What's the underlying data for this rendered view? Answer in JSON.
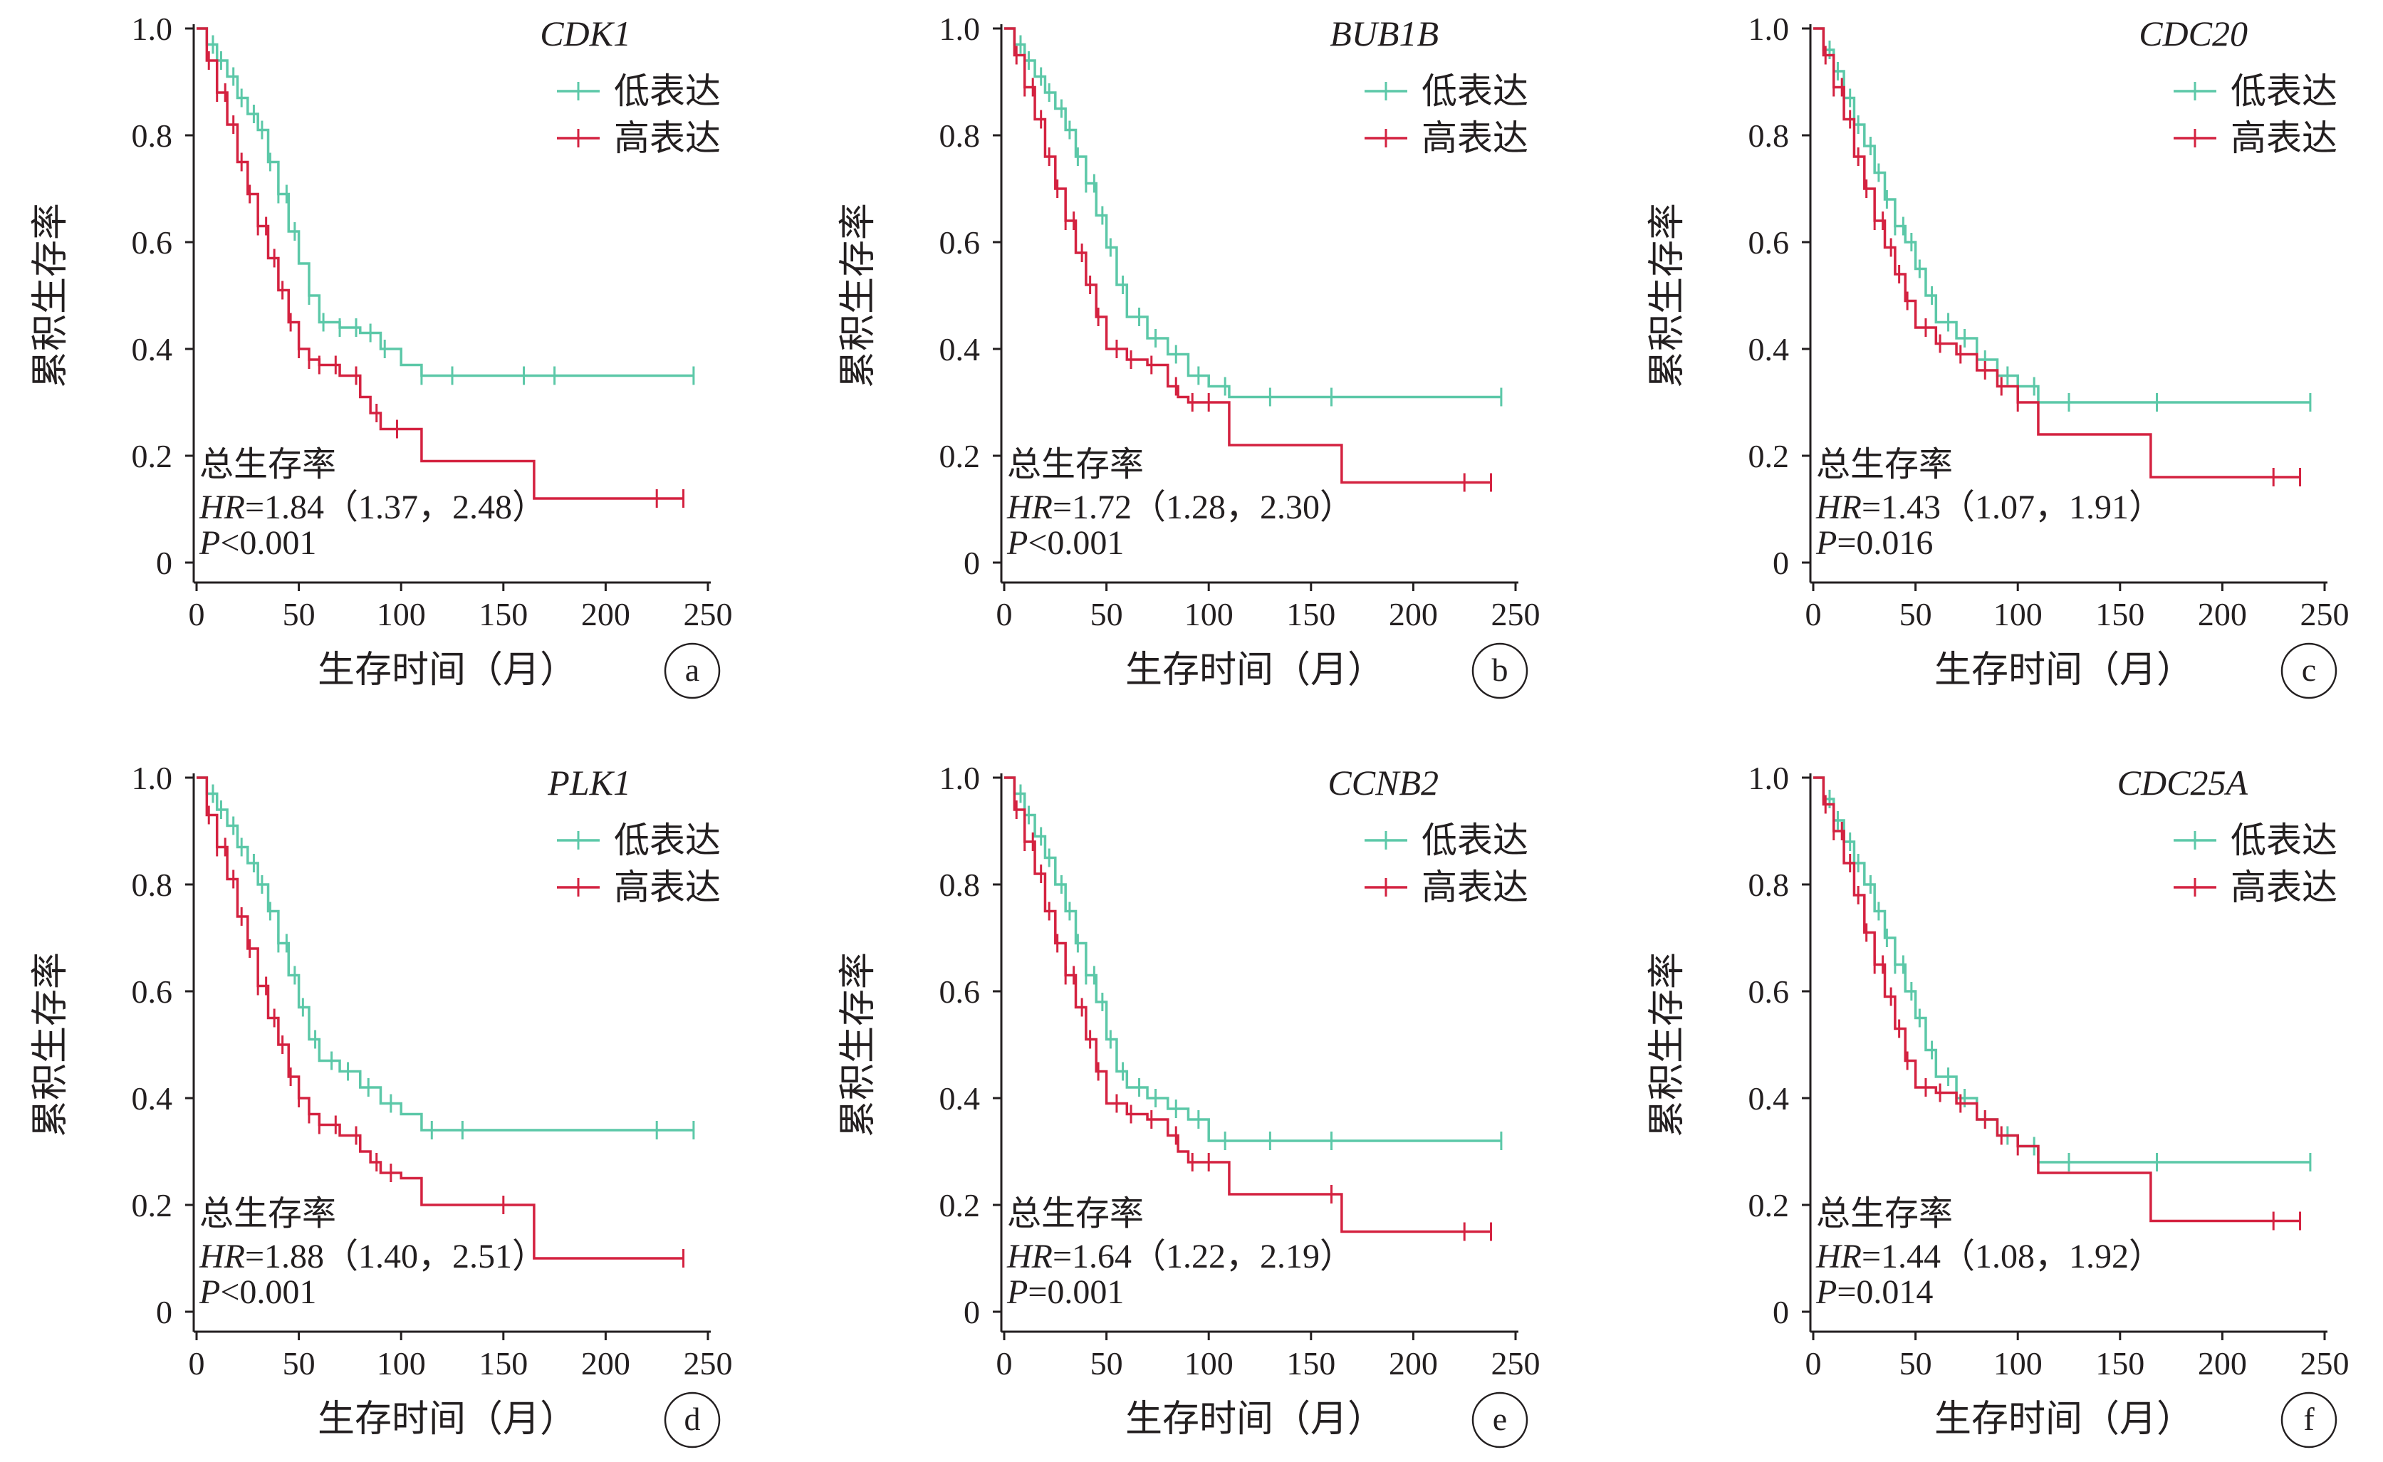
{
  "figure": {
    "y_axis_label": "累积生存率",
    "x_axis_label": "生存时间（月）",
    "legend_low": "低表达",
    "legend_high": "高表达",
    "stat_title": "总生存率",
    "colors": {
      "low": "#5cc8a8",
      "high": "#d42240",
      "axis": "#231f20"
    }
  },
  "chart_data": [
    {
      "type": "line",
      "panel": "a",
      "gene": "CDK1",
      "hr_label": "HR",
      "hr_text": "=1.84（1.37，2.48）",
      "p_label": "P",
      "p_text": "<0.001",
      "xlabel": "生存时间（月）",
      "ylabel": "累积生存率",
      "xlim": [
        0,
        250
      ],
      "ylim": [
        0,
        1.0
      ],
      "x_ticks": [
        "0",
        "50",
        "100",
        "150",
        "200",
        "250"
      ],
      "y_ticks": [
        "0",
        "0.2",
        "0.4",
        "0.6",
        "0.8",
        "1.0"
      ],
      "series": [
        {
          "name": "低表达",
          "key": "low",
          "x": [
            0,
            5,
            10,
            15,
            20,
            25,
            30,
            35,
            40,
            45,
            50,
            55,
            60,
            70,
            80,
            90,
            100,
            110,
            243
          ],
          "y": [
            1.0,
            0.97,
            0.94,
            0.91,
            0.87,
            0.84,
            0.81,
            0.75,
            0.69,
            0.62,
            0.56,
            0.5,
            0.45,
            0.44,
            0.43,
            0.4,
            0.37,
            0.35,
            0.35
          ],
          "censor_x": [
            8,
            12,
            18,
            22,
            28,
            32,
            36,
            40,
            44,
            48,
            55,
            62,
            70,
            78,
            85,
            92,
            110,
            125,
            160,
            175,
            243
          ]
        },
        {
          "name": "高表达",
          "key": "high",
          "x": [
            0,
            5,
            10,
            15,
            20,
            25,
            30,
            35,
            40,
            45,
            50,
            55,
            60,
            70,
            80,
            85,
            90,
            100,
            110,
            165,
            238
          ],
          "y": [
            1.0,
            0.94,
            0.88,
            0.82,
            0.75,
            0.69,
            0.63,
            0.57,
            0.51,
            0.45,
            0.4,
            0.38,
            0.37,
            0.35,
            0.31,
            0.28,
            0.25,
            0.25,
            0.19,
            0.12,
            0.12
          ],
          "censor_x": [
            6,
            10,
            14,
            18,
            22,
            26,
            30,
            34,
            38,
            42,
            46,
            50,
            55,
            60,
            68,
            78,
            88,
            98,
            225,
            238
          ]
        }
      ]
    },
    {
      "type": "line",
      "panel": "b",
      "gene": "BUB1B",
      "hr_label": "HR",
      "hr_text": "=1.72（1.28，2.30）",
      "p_label": "P",
      "p_text": "<0.001",
      "xlabel": "生存时间（月）",
      "ylabel": "累积生存率",
      "xlim": [
        0,
        250
      ],
      "ylim": [
        0,
        1.0
      ],
      "x_ticks": [
        "0",
        "50",
        "100",
        "150",
        "200",
        "250"
      ],
      "y_ticks": [
        "0",
        "0.2",
        "0.4",
        "0.6",
        "0.8",
        "1.0"
      ],
      "series": [
        {
          "name": "低表达",
          "key": "low",
          "x": [
            0,
            5,
            10,
            15,
            20,
            25,
            30,
            35,
            40,
            45,
            50,
            55,
            60,
            70,
            80,
            90,
            100,
            110,
            243
          ],
          "y": [
            1.0,
            0.97,
            0.94,
            0.91,
            0.88,
            0.85,
            0.81,
            0.76,
            0.71,
            0.65,
            0.59,
            0.52,
            0.46,
            0.42,
            0.39,
            0.35,
            0.33,
            0.31,
            0.31
          ],
          "censor_x": [
            8,
            12,
            18,
            22,
            28,
            32,
            36,
            40,
            44,
            48,
            52,
            58,
            66,
            74,
            84,
            95,
            108,
            130,
            160,
            243
          ]
        },
        {
          "name": "高表达",
          "key": "high",
          "x": [
            0,
            5,
            10,
            15,
            20,
            25,
            30,
            35,
            40,
            45,
            50,
            60,
            70,
            80,
            85,
            90,
            110,
            165,
            238
          ],
          "y": [
            1.0,
            0.95,
            0.89,
            0.83,
            0.76,
            0.7,
            0.64,
            0.58,
            0.52,
            0.46,
            0.4,
            0.38,
            0.37,
            0.33,
            0.31,
            0.3,
            0.22,
            0.15,
            0.15
          ],
          "censor_x": [
            6,
            10,
            14,
            18,
            22,
            26,
            30,
            34,
            38,
            42,
            46,
            55,
            62,
            72,
            84,
            92,
            100,
            225,
            238
          ]
        }
      ]
    },
    {
      "type": "line",
      "panel": "c",
      "gene": "CDC20",
      "hr_label": "HR",
      "hr_text": "=1.43（1.07，1.91）",
      "p_label": "P",
      "p_text": "=0.016",
      "xlabel": "生存时间（月）",
      "ylabel": "累积生存率",
      "xlim": [
        0,
        250
      ],
      "ylim": [
        0,
        1.0
      ],
      "x_ticks": [
        "0",
        "50",
        "100",
        "150",
        "200",
        "250"
      ],
      "y_ticks": [
        "0",
        "0.2",
        "0.4",
        "0.6",
        "0.8",
        "1.0"
      ],
      "series": [
        {
          "name": "低表达",
          "key": "low",
          "x": [
            0,
            5,
            10,
            15,
            20,
            25,
            30,
            35,
            40,
            45,
            50,
            55,
            60,
            70,
            80,
            90,
            100,
            110,
            243
          ],
          "y": [
            1.0,
            0.96,
            0.92,
            0.87,
            0.82,
            0.78,
            0.73,
            0.68,
            0.63,
            0.6,
            0.55,
            0.5,
            0.45,
            0.42,
            0.38,
            0.35,
            0.33,
            0.3,
            0.3
          ],
          "censor_x": [
            8,
            12,
            18,
            22,
            28,
            32,
            36,
            40,
            44,
            48,
            52,
            58,
            66,
            74,
            84,
            95,
            108,
            125,
            168,
            243
          ]
        },
        {
          "name": "高表达",
          "key": "high",
          "x": [
            0,
            5,
            10,
            15,
            20,
            25,
            30,
            35,
            40,
            45,
            50,
            60,
            70,
            80,
            90,
            100,
            110,
            165,
            238
          ],
          "y": [
            1.0,
            0.95,
            0.89,
            0.83,
            0.76,
            0.7,
            0.64,
            0.59,
            0.54,
            0.49,
            0.44,
            0.41,
            0.39,
            0.36,
            0.33,
            0.3,
            0.24,
            0.16,
            0.16
          ],
          "censor_x": [
            6,
            10,
            14,
            18,
            22,
            26,
            30,
            34,
            38,
            42,
            46,
            55,
            62,
            72,
            84,
            92,
            100,
            225,
            238
          ]
        }
      ]
    },
    {
      "type": "line",
      "panel": "d",
      "gene": "PLK1",
      "hr_label": "HR",
      "hr_text": "=1.88（1.40，2.51）",
      "p_label": "P",
      "p_text": "<0.001",
      "xlabel": "生存时间（月）",
      "ylabel": "累积生存率",
      "xlim": [
        0,
        250
      ],
      "ylim": [
        0,
        1.0
      ],
      "x_ticks": [
        "0",
        "50",
        "100",
        "150",
        "200",
        "250"
      ],
      "y_ticks": [
        "0",
        "0.2",
        "0.4",
        "0.6",
        "0.8",
        "1.0"
      ],
      "series": [
        {
          "name": "低表达",
          "key": "low",
          "x": [
            0,
            5,
            10,
            15,
            20,
            25,
            30,
            35,
            40,
            45,
            50,
            55,
            60,
            70,
            80,
            90,
            100,
            110,
            243
          ],
          "y": [
            1.0,
            0.97,
            0.94,
            0.91,
            0.87,
            0.84,
            0.8,
            0.75,
            0.69,
            0.63,
            0.57,
            0.51,
            0.47,
            0.45,
            0.42,
            0.39,
            0.37,
            0.34,
            0.34
          ],
          "censor_x": [
            8,
            12,
            18,
            22,
            28,
            32,
            36,
            40,
            44,
            48,
            52,
            58,
            66,
            74,
            84,
            95,
            115,
            130,
            225,
            243
          ]
        },
        {
          "name": "高表达",
          "key": "high",
          "x": [
            0,
            5,
            10,
            15,
            20,
            25,
            30,
            35,
            40,
            45,
            50,
            55,
            60,
            70,
            80,
            85,
            90,
            100,
            110,
            165,
            238
          ],
          "y": [
            1.0,
            0.93,
            0.87,
            0.81,
            0.74,
            0.68,
            0.61,
            0.55,
            0.5,
            0.44,
            0.4,
            0.37,
            0.35,
            0.33,
            0.3,
            0.28,
            0.26,
            0.25,
            0.2,
            0.1,
            0.1
          ],
          "censor_x": [
            6,
            10,
            14,
            18,
            22,
            26,
            30,
            34,
            38,
            42,
            46,
            50,
            55,
            60,
            68,
            78,
            88,
            95,
            150,
            238
          ]
        }
      ]
    },
    {
      "type": "line",
      "panel": "e",
      "gene": "CCNB2",
      "hr_label": "HR",
      "hr_text": "=1.64（1.22，2.19）",
      "p_label": "P",
      "p_text": "=0.001",
      "xlabel": "生存时间（月）",
      "ylabel": "累积生存率",
      "xlim": [
        0,
        250
      ],
      "ylim": [
        0,
        1.0
      ],
      "x_ticks": [
        "0",
        "50",
        "100",
        "150",
        "200",
        "250"
      ],
      "y_ticks": [
        "0",
        "0.2",
        "0.4",
        "0.6",
        "0.8",
        "1.0"
      ],
      "series": [
        {
          "name": "低表达",
          "key": "low",
          "x": [
            0,
            5,
            10,
            15,
            20,
            25,
            30,
            35,
            40,
            45,
            50,
            55,
            60,
            70,
            80,
            90,
            100,
            110,
            243
          ],
          "y": [
            1.0,
            0.97,
            0.93,
            0.89,
            0.85,
            0.8,
            0.75,
            0.69,
            0.63,
            0.58,
            0.51,
            0.45,
            0.42,
            0.4,
            0.38,
            0.36,
            0.32,
            0.32,
            0.32
          ],
          "censor_x": [
            8,
            12,
            18,
            22,
            28,
            32,
            36,
            40,
            44,
            48,
            52,
            58,
            66,
            74,
            84,
            95,
            108,
            130,
            160,
            243
          ]
        },
        {
          "name": "高表达",
          "key": "high",
          "x": [
            0,
            5,
            10,
            15,
            20,
            25,
            30,
            35,
            40,
            45,
            50,
            60,
            70,
            80,
            85,
            90,
            110,
            165,
            238
          ],
          "y": [
            1.0,
            0.94,
            0.88,
            0.82,
            0.75,
            0.69,
            0.63,
            0.57,
            0.51,
            0.45,
            0.39,
            0.37,
            0.36,
            0.33,
            0.3,
            0.28,
            0.22,
            0.15,
            0.15
          ],
          "censor_x": [
            6,
            10,
            14,
            18,
            22,
            26,
            30,
            34,
            38,
            42,
            46,
            55,
            62,
            72,
            84,
            92,
            100,
            160,
            225,
            238
          ]
        }
      ]
    },
    {
      "type": "line",
      "panel": "f",
      "gene": "CDC25A",
      "hr_label": "HR",
      "hr_text": "=1.44（1.08，1.92）",
      "p_label": "P",
      "p_text": "=0.014",
      "xlabel": "生存时间（月）",
      "ylabel": "累积生存率",
      "xlim": [
        0,
        250
      ],
      "ylim": [
        0,
        1.0
      ],
      "x_ticks": [
        "0",
        "50",
        "100",
        "150",
        "200",
        "250"
      ],
      "y_ticks": [
        "0",
        "0.2",
        "0.4",
        "0.6",
        "0.8",
        "1.0"
      ],
      "series": [
        {
          "name": "低表达",
          "key": "low",
          "x": [
            0,
            5,
            10,
            15,
            20,
            25,
            30,
            35,
            40,
            45,
            50,
            55,
            60,
            70,
            80,
            90,
            100,
            110,
            243
          ],
          "y": [
            1.0,
            0.96,
            0.92,
            0.88,
            0.84,
            0.8,
            0.75,
            0.7,
            0.65,
            0.6,
            0.55,
            0.49,
            0.44,
            0.4,
            0.36,
            0.33,
            0.31,
            0.28,
            0.28
          ],
          "censor_x": [
            8,
            12,
            18,
            22,
            28,
            32,
            36,
            40,
            44,
            48,
            52,
            58,
            66,
            74,
            84,
            95,
            108,
            125,
            168,
            243
          ]
        },
        {
          "name": "高表达",
          "key": "high",
          "x": [
            0,
            5,
            10,
            15,
            20,
            25,
            30,
            35,
            40,
            45,
            50,
            60,
            70,
            80,
            90,
            100,
            110,
            165,
            238
          ],
          "y": [
            1.0,
            0.95,
            0.9,
            0.84,
            0.78,
            0.71,
            0.65,
            0.59,
            0.53,
            0.47,
            0.42,
            0.41,
            0.39,
            0.36,
            0.33,
            0.31,
            0.26,
            0.17,
            0.17
          ],
          "censor_x": [
            6,
            10,
            14,
            18,
            22,
            26,
            30,
            34,
            38,
            42,
            46,
            55,
            62,
            72,
            84,
            92,
            100,
            225,
            238
          ]
        }
      ]
    }
  ]
}
